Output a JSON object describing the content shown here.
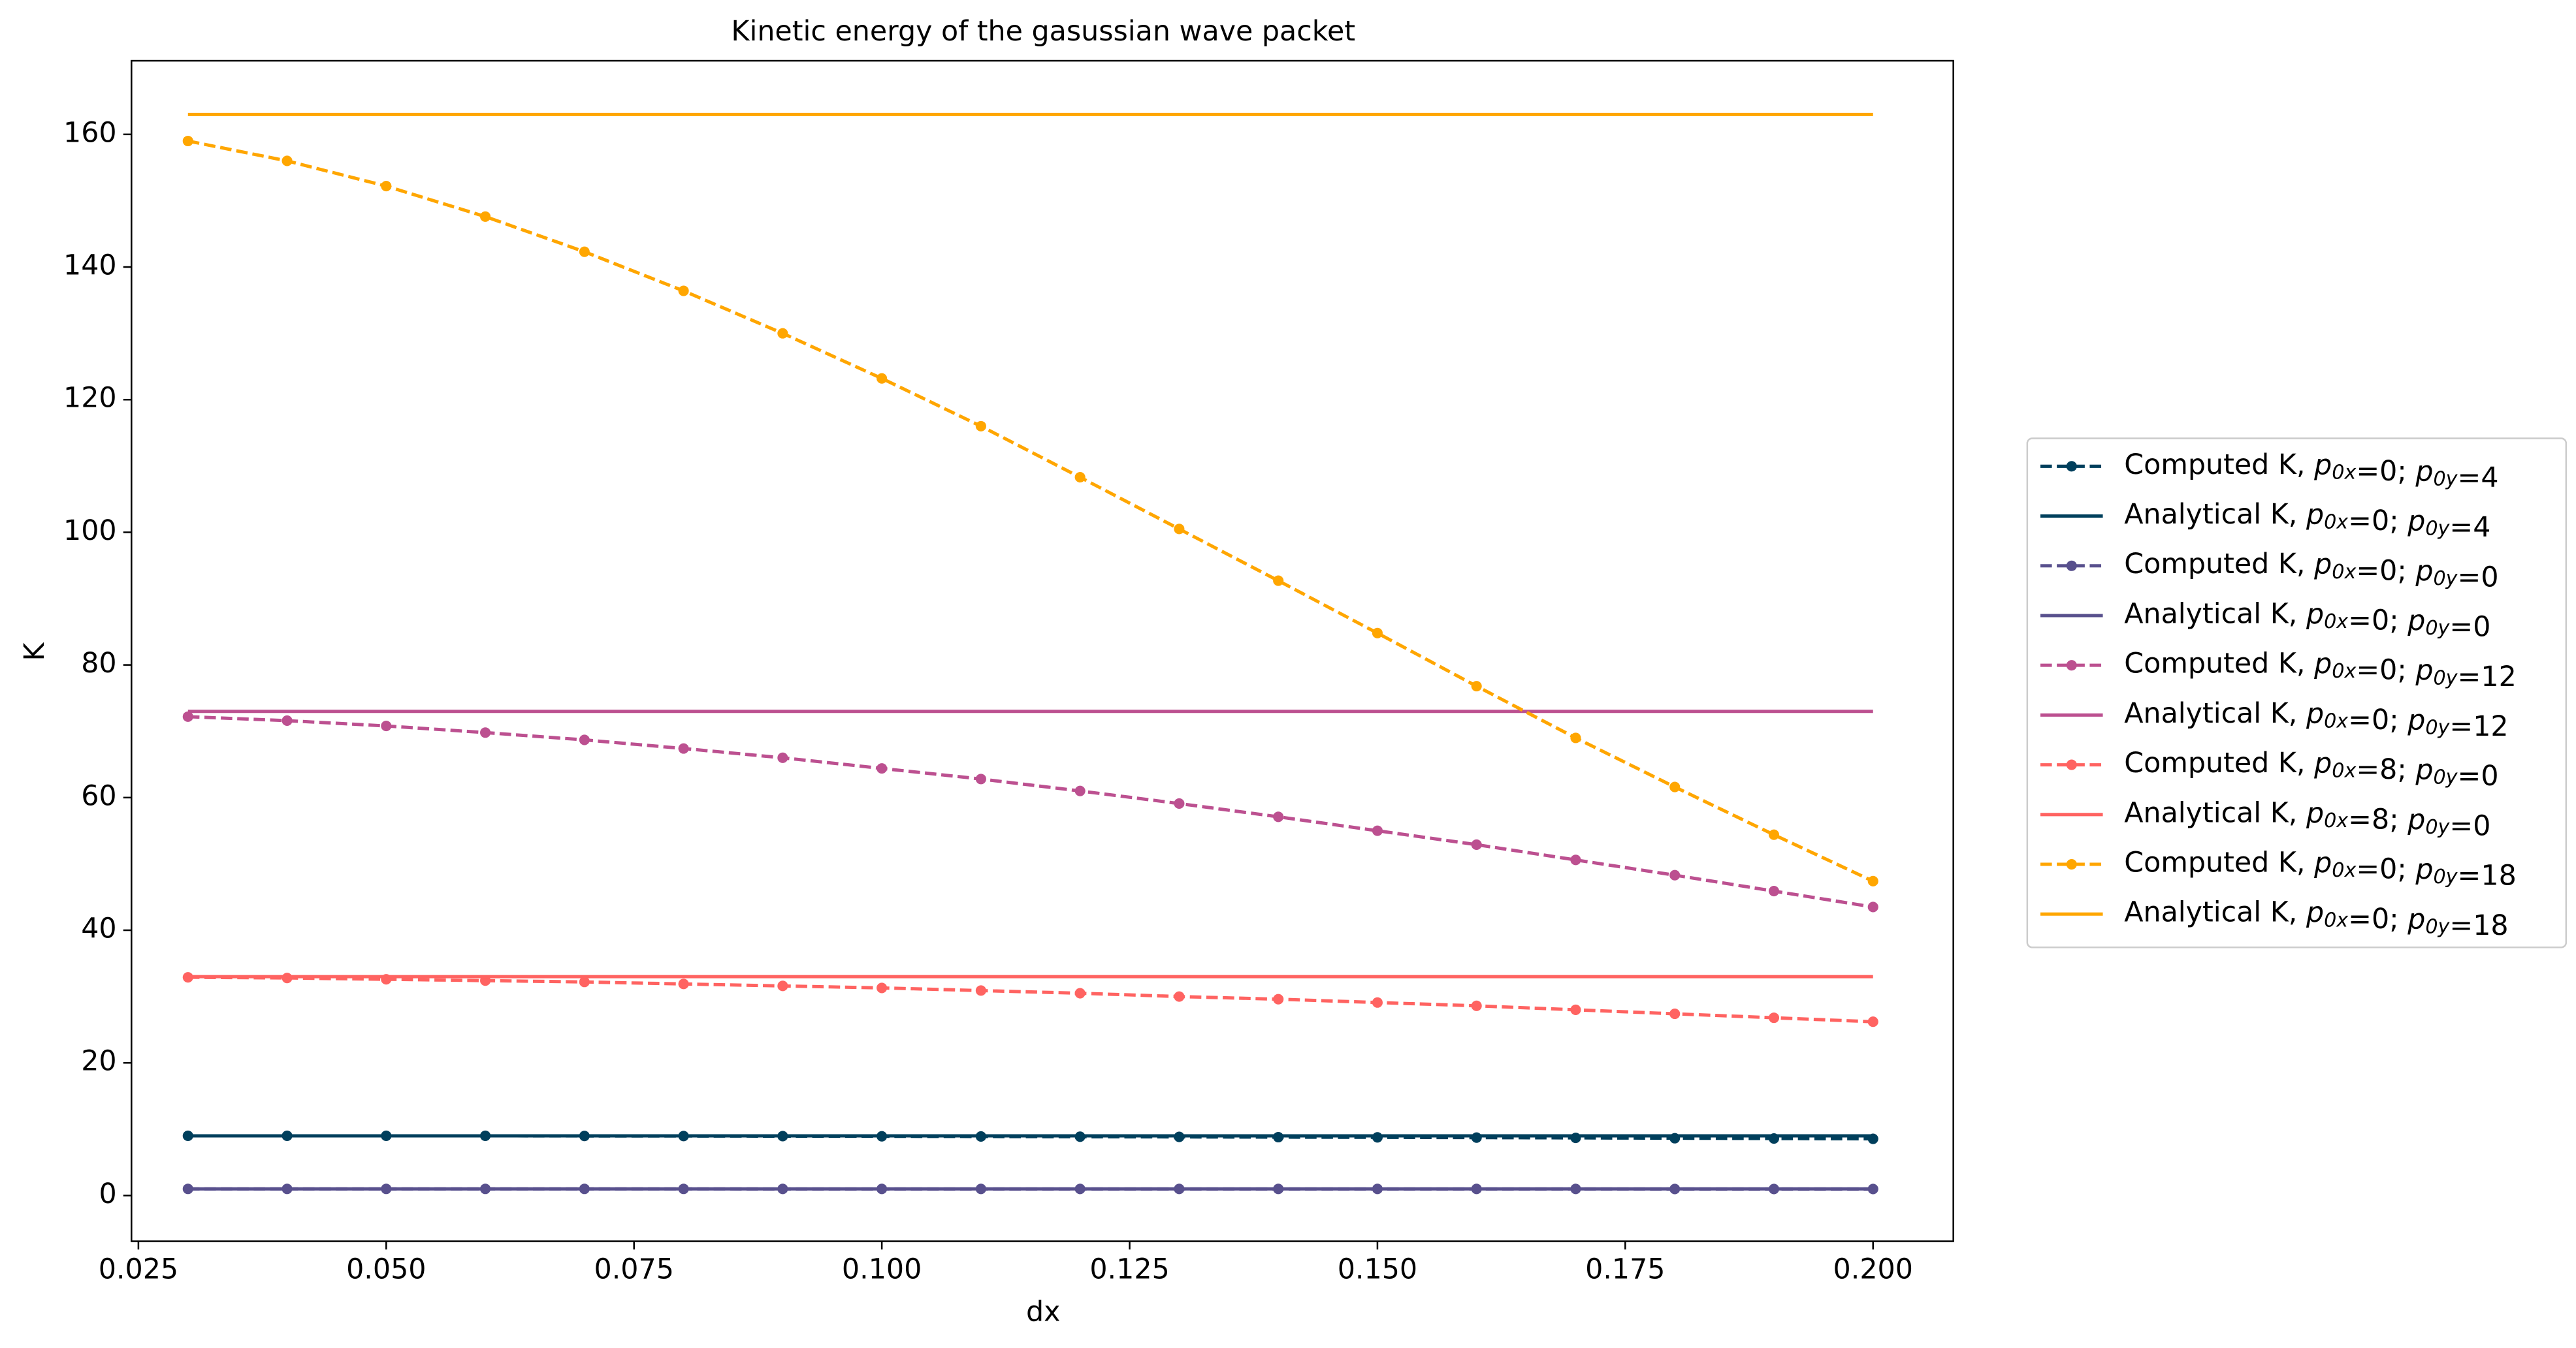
{
  "chart_data": {
    "type": "line",
    "title": "Kinetic energy of the gasussian wave packet",
    "xlabel": "dx",
    "ylabel": "K",
    "x": [
      0.03,
      0.04,
      0.05,
      0.06,
      0.07,
      0.08,
      0.09,
      0.1,
      0.11,
      0.12,
      0.13,
      0.14,
      0.15,
      0.16,
      0.17,
      0.18,
      0.19,
      0.2
    ],
    "xlim": [
      0.0243,
      0.2081
    ],
    "xticks": [
      0.025,
      {
        "value": 0.05,
        "label": "0.050"
      },
      0.075,
      {
        "value": 0.1,
        "label": "0.100"
      },
      0.125,
      {
        "value": 0.15,
        "label": "0.150"
      },
      0.175,
      {
        "value": 0.2,
        "label": "0.200"
      }
    ],
    "ylim": [
      -6.9,
      171.1
    ],
    "yticks": [
      0,
      20,
      40,
      60,
      80,
      100,
      120,
      140,
      160
    ],
    "legend": "outside right",
    "series": [
      {
        "name": "Computed K, p0x=0; p0y=4",
        "color": "#003f5c",
        "style": "dashed",
        "markers": true,
        "values": [
          9.0,
          9.0,
          9.0,
          9.0,
          8.98,
          8.97,
          8.95,
          8.93,
          8.9,
          8.87,
          8.84,
          8.8,
          8.77,
          8.73,
          8.69,
          8.64,
          8.6,
          8.55
        ]
      },
      {
        "name": "Analytical K, p0x=0; p0y=4",
        "color": "#003f5c",
        "style": "solid",
        "markers": false,
        "values": [
          9,
          9,
          9,
          9,
          9,
          9,
          9,
          9,
          9,
          9,
          9,
          9,
          9,
          9,
          9,
          9,
          9,
          9
        ]
      },
      {
        "name": "Computed K, p0x=0; p0y=0",
        "color": "#58508d",
        "style": "dashed",
        "markers": true,
        "values": [
          1.0,
          1.0,
          1.0,
          1.0,
          1.0,
          1.0,
          0.99,
          0.99,
          0.99,
          0.99,
          0.99,
          0.99,
          0.99,
          0.99,
          0.99,
          0.98,
          0.98,
          0.98
        ]
      },
      {
        "name": "Analytical K, p0x=0; p0y=0",
        "color": "#58508d",
        "style": "solid",
        "markers": false,
        "values": [
          1,
          1,
          1,
          1,
          1,
          1,
          1,
          1,
          1,
          1,
          1,
          1,
          1,
          1,
          1,
          1,
          1,
          1
        ]
      },
      {
        "name": "Computed K, p0x=0; p0y=12",
        "color": "#bc5090",
        "style": "dashed",
        "markers": true,
        "values": [
          72.2,
          71.6,
          70.8,
          69.8,
          68.7,
          67.4,
          66.0,
          64.4,
          62.8,
          61.0,
          59.1,
          57.1,
          55.0,
          52.9,
          50.6,
          48.3,
          45.9,
          43.5
        ]
      },
      {
        "name": "Analytical K, p0x=0; p0y=12",
        "color": "#bc5090",
        "style": "solid",
        "markers": false,
        "values": [
          73,
          73,
          73,
          73,
          73,
          73,
          73,
          73,
          73,
          73,
          73,
          73,
          73,
          73,
          73,
          73,
          73,
          73
        ]
      },
      {
        "name": "Computed K, p0x=8; p0y=0",
        "color": "#ff6361",
        "style": "dashed",
        "markers": true,
        "values": [
          32.9,
          32.8,
          32.6,
          32.4,
          32.2,
          31.9,
          31.6,
          31.3,
          30.9,
          30.5,
          30.0,
          29.6,
          29.1,
          28.6,
          28.0,
          27.4,
          26.8,
          26.2
        ]
      },
      {
        "name": "Analytical K, p0x=8; p0y=0",
        "color": "#ff6361",
        "style": "solid",
        "markers": false,
        "values": [
          33,
          33,
          33,
          33,
          33,
          33,
          33,
          33,
          33,
          33,
          33,
          33,
          33,
          33,
          33,
          33,
          33,
          33
        ]
      },
      {
        "name": "Computed K, p0x=0; p0y=18",
        "color": "#ffa600",
        "style": "dashed",
        "markers": true,
        "values": [
          159.0,
          156.0,
          152.2,
          147.6,
          142.3,
          136.4,
          130.0,
          123.2,
          116.0,
          108.3,
          100.5,
          92.7,
          84.8,
          76.8,
          69.0,
          61.6,
          54.4,
          47.4
        ]
      },
      {
        "name": "Analytical K, p0x=0; p0y=18",
        "color": "#ffa600",
        "style": "solid",
        "markers": false,
        "values": [
          163,
          163,
          163,
          163,
          163,
          163,
          163,
          163,
          163,
          163,
          163,
          163,
          163,
          163,
          163,
          163,
          163,
          163
        ]
      }
    ]
  }
}
